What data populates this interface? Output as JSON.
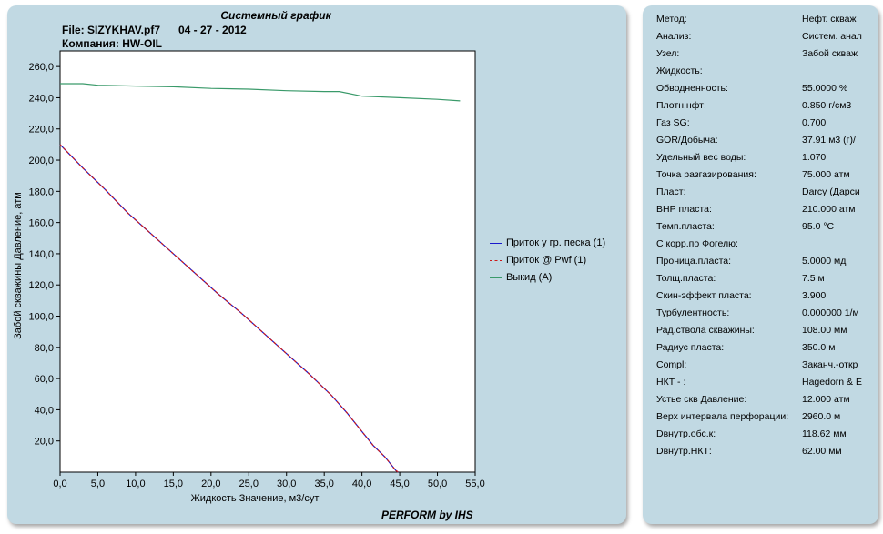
{
  "header": {
    "title": "Системный график",
    "file": "File: SIZYKHAV.pf7",
    "date": "04 - 27 - 2012",
    "company": "Компания: HW-OIL",
    "footer": "PERFORM by IHS"
  },
  "chart_data": {
    "type": "line",
    "xlabel": "Жидкость Значение, м3/сут",
    "ylabel": "Забой скважины Давление, атм",
    "xlim": [
      0,
      55
    ],
    "ylim": [
      0,
      270
    ],
    "xticks": [
      "0,0",
      "5,0",
      "10,0",
      "15,0",
      "20,0",
      "25,0",
      "30,0",
      "35,0",
      "40,0",
      "45,0",
      "50,0",
      "55,0"
    ],
    "yticks": [
      "20,0",
      "40,0",
      "60,0",
      "80,0",
      "100,0",
      "120,0",
      "140,0",
      "160,0",
      "180,0",
      "200,0",
      "220,0",
      "240,0",
      "260,0"
    ],
    "grid": false,
    "legend_position": "right",
    "series": [
      {
        "name": "Приток у гр. песка (1)",
        "color": "#1a1acc",
        "style": "solid",
        "x": [
          0,
          3,
          6,
          9,
          12,
          15,
          18,
          21,
          24,
          27,
          30,
          33,
          36,
          38,
          40,
          41.5,
          43,
          44,
          44.5,
          44.8
        ],
        "y": [
          210,
          195,
          181,
          166,
          153,
          140,
          127,
          114,
          102,
          89,
          76,
          63,
          49,
          38,
          26,
          17,
          10,
          4,
          1,
          0
        ]
      },
      {
        "name": "Приток @ Pwf (1)",
        "color": "#cc1a1a",
        "style": "dashed",
        "x": [
          0,
          3,
          6,
          9,
          12,
          15,
          18,
          21,
          24,
          27,
          30,
          33,
          36,
          38,
          40,
          41.5,
          43,
          44,
          44.5,
          44.8
        ],
        "y": [
          210,
          195,
          181,
          166,
          153,
          140,
          127,
          114,
          102,
          89,
          76,
          63,
          49,
          38,
          26,
          17,
          10,
          4,
          1,
          0
        ]
      },
      {
        "name": "Выкид (А)",
        "color": "#3a9a6a",
        "style": "solid",
        "x": [
          0,
          3,
          5,
          10,
          15,
          20,
          25,
          30,
          35,
          37,
          40,
          45,
          50,
          53
        ],
        "y": [
          249,
          249,
          248,
          247.5,
          247,
          246,
          245.5,
          244.5,
          244,
          244,
          241,
          240,
          239,
          238
        ]
      }
    ]
  },
  "properties": [
    {
      "label": "Метод:",
      "value": "Нефт. скваж"
    },
    {
      "label": "Анализ:",
      "value": "Систем. анал"
    },
    {
      "label": "Узел:",
      "value": "Забой скваж"
    },
    {
      "label": "Жидкость:",
      "value": ""
    },
    {
      "label": "Обводненность:",
      "value": "55.0000 %"
    },
    {
      "label": "Плотн.нфт:",
      "value": "0.850 г/см3"
    },
    {
      "label": "Газ SG:",
      "value": "0.700"
    },
    {
      "label": "GOR/Добыча:",
      "value": "37.91 м3 (г)/"
    },
    {
      "label": "Удельный вес воды:",
      "value": "1.070"
    },
    {
      "label": "Точка разгазирования:",
      "value": "75.000 атм"
    },
    {
      "label": "Пласт:",
      "value": "Darcy (Дарси"
    },
    {
      "label": "ВНР пласта:",
      "value": "210.000 атм"
    },
    {
      "label": "Темп.пласта:",
      "value": "95.0 °C"
    },
    {
      "label": "С корр.по Фогелю:",
      "value": ""
    },
    {
      "label": "Проница.пласта:",
      "value": "5.0000 мд"
    },
    {
      "label": "Толщ.пласта:",
      "value": "7.5 м"
    },
    {
      "label": "Скин-эффект пласта:",
      "value": "3.900"
    },
    {
      "label": "Турбулентность:",
      "value": "0.000000 1/м"
    },
    {
      "label": "Рад.ствола скважины:",
      "value": "108.00 мм"
    },
    {
      "label": "Радиус пласта:",
      "value": "350.0 м"
    },
    {
      "label": "Compl:",
      "value": "Заканч.-откр"
    },
    {
      "label": "НКТ - :",
      "value": "Hagedorn & E"
    },
    {
      "label": "Устье скв Давление:",
      "value": "12.000 атм"
    },
    {
      "label": "Верх интервала перфорации:",
      "value": "2960.0 м"
    },
    {
      "label": "Dвнутр.обс.к:",
      "value": "118.62 мм"
    },
    {
      "label": "Dвнутр.НКТ:",
      "value": "62.00 мм"
    }
  ]
}
